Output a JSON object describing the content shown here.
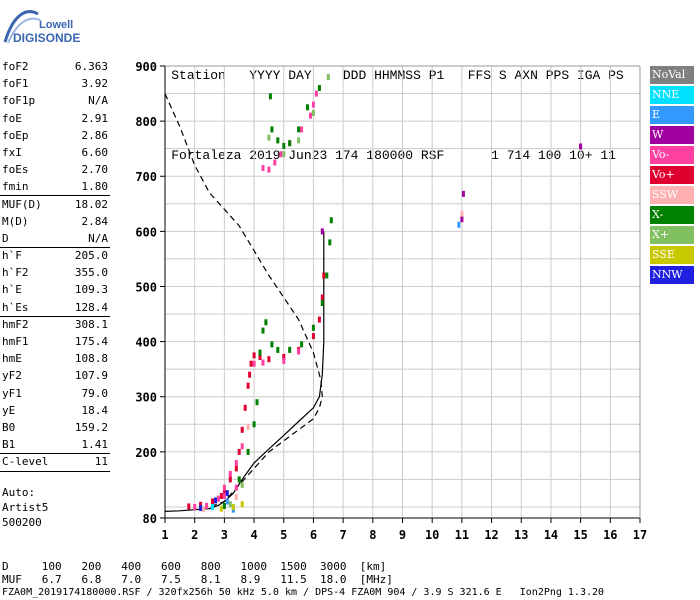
{
  "logo": {
    "line1": "Lowell",
    "line2": "DIGISONDE"
  },
  "header": {
    "labels": [
      "Station",
      "YYYY DAY",
      "DDD HHMMSS P1",
      "FFS S AXN PPS IGA PS"
    ],
    "values": [
      "Fortaleza",
      "2019 Jun23",
      "174 180000 RSF",
      "1 714 100 10+ 11"
    ]
  },
  "params": [
    {
      "k": "foF2",
      "v": "6.363"
    },
    {
      "k": "foF1",
      "v": "3.92"
    },
    {
      "k": "foF1p",
      "v": "N/A"
    },
    {
      "k": "foE",
      "v": "2.91"
    },
    {
      "k": "foEp",
      "v": "2.86"
    },
    {
      "k": "fxI",
      "v": "6.60"
    },
    {
      "k": "foEs",
      "v": "2.70"
    },
    {
      "k": "fmin",
      "v": "1.80"
    },
    {
      "k": "MUF(D)",
      "v": "18.02"
    },
    {
      "k": "M(D)",
      "v": "2.84"
    },
    {
      "k": "D",
      "v": "N/A"
    },
    {
      "k": "h`F",
      "v": "205.0"
    },
    {
      "k": "h`F2",
      "v": "355.0"
    },
    {
      "k": "h`E",
      "v": "109.3"
    },
    {
      "k": "h`Es",
      "v": "128.4"
    },
    {
      "k": "hmF2",
      "v": "308.1"
    },
    {
      "k": "hmF1",
      "v": "175.4"
    },
    {
      "k": "hmE",
      "v": "108.8"
    },
    {
      "k": "yF2",
      "v": "107.9"
    },
    {
      "k": "yF1",
      "v": "79.0"
    },
    {
      "k": "yE",
      "v": "18.4"
    },
    {
      "k": "B0",
      "v": "159.2"
    },
    {
      "k": "B1",
      "v": "1.41"
    },
    {
      "k": "C-level",
      "v": "11"
    }
  ],
  "autoscale": {
    "line1": "Auto:",
    "line2": "Artist5",
    "line3": "500200"
  },
  "legend": [
    {
      "label": "NoVal",
      "color": "#808080"
    },
    {
      "label": "NNE",
      "color": "#00e0ff"
    },
    {
      "label": "E",
      "color": "#3399ff"
    },
    {
      "label": "W",
      "color": "#a000a0"
    },
    {
      "label": "Vo-",
      "color": "#ff40a0"
    },
    {
      "label": "Vo+",
      "color": "#e00030"
    },
    {
      "label": "SSW",
      "color": "#ffb0b0"
    },
    {
      "label": "X-",
      "color": "#008000"
    },
    {
      "label": "X+",
      "color": "#80c060"
    },
    {
      "label": "SSE",
      "color": "#c8c800"
    },
    {
      "label": "NNW",
      "color": "#2020e0"
    }
  ],
  "chart_data": {
    "type": "scatter",
    "x_ticks": [
      "1",
      "2",
      "3",
      "4",
      "5",
      "6",
      "7",
      "8",
      "9",
      "10",
      "11",
      "12",
      "13",
      "14",
      "15",
      "16",
      "17"
    ],
    "y_ticks": [
      "80",
      "200",
      "300",
      "400",
      "500",
      "600",
      "700",
      "800",
      "900"
    ],
    "xlim": [
      1,
      17
    ],
    "ylim": [
      80,
      900
    ],
    "grid": true,
    "profile_dashed": [
      [
        1,
        850
      ],
      [
        1.5,
        790
      ],
      [
        2,
        720
      ],
      [
        2.5,
        670
      ],
      [
        3,
        640
      ],
      [
        3.5,
        610
      ],
      [
        4,
        565
      ],
      [
        4.5,
        520
      ],
      [
        5,
        480
      ],
      [
        5.5,
        440
      ],
      [
        6,
        380
      ],
      [
        6.25,
        330
      ],
      [
        6.3,
        300
      ],
      [
        6.2,
        280
      ],
      [
        6,
        260
      ],
      [
        5.5,
        240
      ],
      [
        5,
        220
      ],
      [
        4.5,
        200
      ],
      [
        4,
        170
      ],
      [
        3.5,
        140
      ],
      [
        3,
        110
      ],
      [
        2.5,
        100
      ],
      [
        2,
        95
      ]
    ],
    "profile_solid": [
      [
        1,
        92
      ],
      [
        1.5,
        93
      ],
      [
        2,
        95
      ],
      [
        2.5,
        97
      ],
      [
        2.8,
        103
      ],
      [
        3,
        110
      ],
      [
        3.3,
        125
      ],
      [
        3.6,
        150
      ],
      [
        4,
        180
      ],
      [
        4.5,
        205
      ],
      [
        5,
        230
      ],
      [
        5.5,
        255
      ],
      [
        6,
        280
      ],
      [
        6.2,
        300
      ],
      [
        6.3,
        340
      ],
      [
        6.35,
        400
      ],
      [
        6.35,
        500
      ],
      [
        6.35,
        600
      ]
    ],
    "traces": [
      {
        "mode": "Vo+",
        "points": [
          [
            1.8,
            101
          ],
          [
            2.2,
            104
          ],
          [
            2.6,
            110
          ],
          [
            2.9,
            120
          ],
          [
            3.0,
            130
          ],
          [
            3.2,
            150
          ],
          [
            3.4,
            170
          ],
          [
            3.5,
            200
          ],
          [
            3.6,
            240
          ],
          [
            3.7,
            280
          ],
          [
            3.8,
            320
          ],
          [
            3.85,
            340
          ],
          [
            3.9,
            360
          ],
          [
            4.0,
            375
          ],
          [
            4.2,
            372
          ],
          [
            4.5,
            368
          ],
          [
            5.0,
            372
          ],
          [
            5.5,
            385
          ],
          [
            6.0,
            410
          ],
          [
            6.2,
            440
          ],
          [
            6.3,
            480
          ],
          [
            6.35,
            520
          ]
        ]
      },
      {
        "mode": "Vo-",
        "points": [
          [
            2.0,
            100
          ],
          [
            2.4,
            102
          ],
          [
            2.8,
            115
          ],
          [
            3.0,
            135
          ],
          [
            3.2,
            160
          ],
          [
            3.4,
            180
          ],
          [
            3.6,
            210
          ],
          [
            4.0,
            360
          ],
          [
            4.3,
            362
          ],
          [
            5.0,
            365
          ],
          [
            5.5,
            382
          ],
          [
            4.3,
            715
          ],
          [
            4.5,
            712
          ],
          [
            4.7,
            725
          ],
          [
            4.9,
            740
          ],
          [
            5.2,
            760
          ],
          [
            5.6,
            785
          ],
          [
            5.9,
            810
          ],
          [
            6.0,
            830
          ],
          [
            6.1,
            850
          ],
          [
            3.0,
            120
          ],
          [
            3.4,
            135
          ]
        ]
      },
      {
        "mode": "X-",
        "points": [
          [
            3.0,
            102
          ],
          [
            3.5,
            150
          ],
          [
            3.8,
            200
          ],
          [
            4.0,
            250
          ],
          [
            4.1,
            290
          ],
          [
            4.2,
            380
          ],
          [
            4.3,
            420
          ],
          [
            4.4,
            435
          ],
          [
            4.6,
            395
          ],
          [
            4.8,
            385
          ],
          [
            5.2,
            385
          ],
          [
            5.6,
            395
          ],
          [
            6.0,
            425
          ],
          [
            6.3,
            470
          ],
          [
            6.45,
            520
          ],
          [
            6.55,
            580
          ],
          [
            6.6,
            620
          ],
          [
            4.55,
            845
          ],
          [
            4.6,
            785
          ],
          [
            4.8,
            765
          ],
          [
            5.0,
            755
          ],
          [
            5.2,
            760
          ],
          [
            5.5,
            785
          ],
          [
            5.8,
            825
          ],
          [
            6.2,
            860
          ]
        ]
      },
      {
        "mode": "X+",
        "points": [
          [
            3.2,
            105
          ],
          [
            3.6,
            140
          ],
          [
            4.5,
            770
          ],
          [
            5.0,
            740
          ],
          [
            5.5,
            765
          ],
          [
            6.0,
            815
          ],
          [
            6.5,
            880
          ]
        ]
      },
      {
        "mode": "W",
        "points": [
          [
            11.05,
            668
          ],
          [
            11.0,
            622
          ],
          [
            15.0,
            754
          ],
          [
            6.3,
            600
          ]
        ]
      },
      {
        "mode": "E",
        "points": [
          [
            10.9,
            612
          ],
          [
            3.1,
            110
          ],
          [
            3.3,
            95
          ]
        ]
      },
      {
        "mode": "NNE",
        "points": [
          [
            2.6,
            100
          ]
        ]
      },
      {
        "mode": "SSE",
        "points": [
          [
            2.9,
            97
          ],
          [
            3.3,
            100
          ],
          [
            3.6,
            105
          ]
        ]
      },
      {
        "mode": "NNW",
        "points": [
          [
            2.2,
            98
          ],
          [
            2.7,
            112
          ],
          [
            3.1,
            125
          ]
        ]
      },
      {
        "mode": "SSW",
        "points": [
          [
            2.3,
            96
          ],
          [
            3.4,
            118
          ],
          [
            3.8,
            245
          ],
          [
            11.0,
            632
          ]
        ]
      }
    ]
  },
  "bottom_table": {
    "row1_label": "D",
    "row1": [
      "100",
      "200",
      "400",
      "600",
      "800",
      "1000",
      "1500",
      "3000",
      "[km]"
    ],
    "row2_label": "MUF",
    "row2": [
      "6.7",
      "6.8",
      "7.0",
      "7.5",
      "8.1",
      "8.9",
      "11.5",
      "18.0",
      "[MHz]"
    ]
  },
  "footer": "FZA0M_2019174180000.RSF / 320fx256h 50 kHz 5.0 km / DPS-4 FZA0M 904 / 3.9 S 321.6 E   Ion2Png 1.3.20"
}
